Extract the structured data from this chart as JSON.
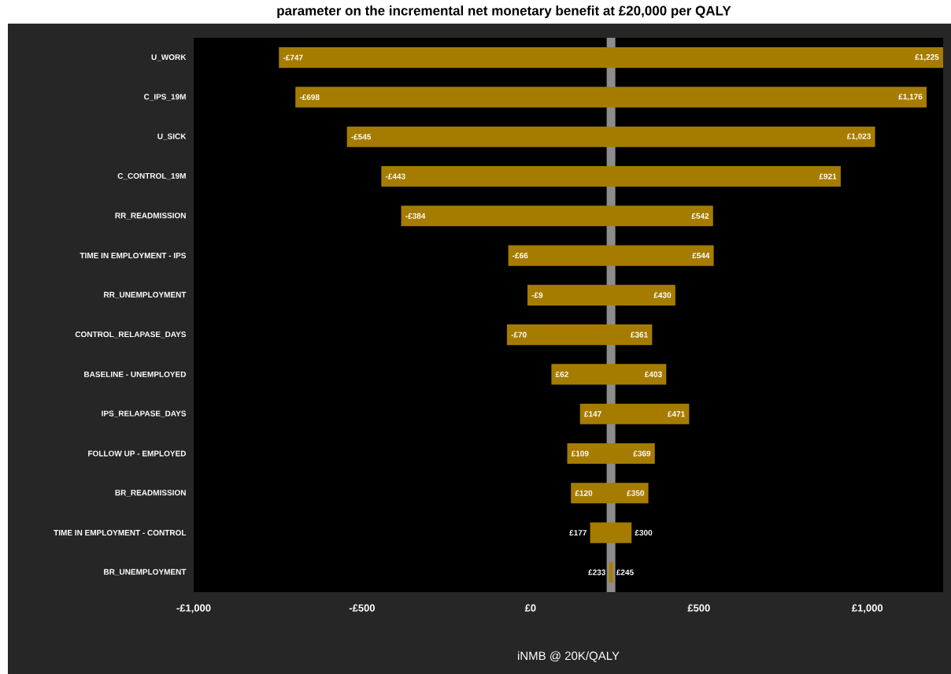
{
  "chart_data": {
    "type": "bar",
    "orientation": "horizontal",
    "title": "parameter on the incremental net monetary benefit at £20,000 per QALY",
    "xlabel": "iNMB @ 20K/QALY",
    "categories": [
      "U_WORK",
      "C_IPS_19M",
      "U_SICK",
      "C_CONTROL_19M",
      "RR_READMISSION",
      "TIME IN EMPLOYMENT - IPS",
      "RR_UNEMPLOYMENT",
      "CONTROL_RELAPASE_DAYS",
      "BASELINE - UNEMPLOYED",
      "IPS_RELAPASE_DAYS",
      "FOLLOW UP - EMPLOYED",
      "BR_READMISSION",
      "TIME IN EMPLOYMENT - CONTROL",
      "BR_UNEMPLOYMENT"
    ],
    "base": [
      -747,
      -698,
      -545,
      -443,
      -384,
      -66,
      -9,
      -70,
      62,
      147,
      109,
      120,
      177,
      233
    ],
    "values": [
      1972,
      1874,
      1568,
      1364,
      926,
      610,
      439,
      431,
      341,
      324,
      260,
      230,
      123,
      12
    ],
    "color": "#a67c00",
    "xlim": [
      -1000,
      1225
    ],
    "xticks": [
      {
        "value": -1000,
        "label": "-£1,000"
      },
      {
        "value": -500,
        "label": "-£500"
      },
      {
        "value": 0,
        "label": "£0"
      },
      {
        "value": 500,
        "label": "£500"
      },
      {
        "value": 1000,
        "label": "£1,000"
      }
    ],
    "ref_lines": [
      {
        "axis": "x",
        "value": 239,
        "color": "#8c8c8c"
      }
    ],
    "annotations": [
      {
        "text": "-£747",
        "x": -747,
        "y": "U_WORK"
      },
      {
        "text": "£1,225",
        "x": 1225,
        "y": "U_WORK"
      },
      {
        "text": "-£698",
        "x": -698,
        "y": "C_IPS_19M"
      },
      {
        "text": "£1,176",
        "x": 1176,
        "y": "C_IPS_19M"
      },
      {
        "text": "-£545",
        "x": -545,
        "y": "U_SICK"
      },
      {
        "text": "£1,023",
        "x": 1023,
        "y": "U_SICK"
      },
      {
        "text": "-£443",
        "x": -443,
        "y": "C_CONTROL_19M"
      },
      {
        "text": "£921",
        "x": 921,
        "y": "C_CONTROL_19M"
      },
      {
        "text": "-£384",
        "x": -384,
        "y": "RR_READMISSION"
      },
      {
        "text": "£542",
        "x": 542,
        "y": "RR_READMISSION"
      },
      {
        "text": "-£66",
        "x": -66,
        "y": "TIME IN EMPLOYMENT - IPS"
      },
      {
        "text": "£544",
        "x": 544,
        "y": "TIME IN EMPLOYMENT - IPS"
      },
      {
        "text": "-£9",
        "x": -9,
        "y": "RR_UNEMPLOYMENT"
      },
      {
        "text": "£430",
        "x": 430,
        "y": "RR_UNEMPLOYMENT"
      },
      {
        "text": "-£70",
        "x": -70,
        "y": "CONTROL_RELAPASE_DAYS"
      },
      {
        "text": "£361",
        "x": 361,
        "y": "CONTROL_RELAPASE_DAYS"
      },
      {
        "text": "£62",
        "x": 62,
        "y": "BASELINE - UNEMPLOYED"
      },
      {
        "text": "£403",
        "x": 403,
        "y": "BASELINE - UNEMPLOYED"
      },
      {
        "text": "£147",
        "x": 147,
        "y": "IPS_RELAPASE_DAYS"
      },
      {
        "text": "£471",
        "x": 471,
        "y": "IPS_RELAPASE_DAYS"
      },
      {
        "text": "£109",
        "x": 109,
        "y": "FOLLOW UP - EMPLOYED"
      },
      {
        "text": "£369",
        "x": 369,
        "y": "FOLLOW UP - EMPLOYED"
      },
      {
        "text": "£120",
        "x": 120,
        "y": "BR_READMISSION"
      },
      {
        "text": "£350",
        "x": 350,
        "y": "BR_READMISSION"
      },
      {
        "text": "£177",
        "x": 177,
        "y": "TIME IN EMPLOYMENT - CONTROL"
      },
      {
        "text": "£300",
        "x": 300,
        "y": "TIME IN EMPLOYMENT - CONTROL"
      },
      {
        "text": "£233",
        "x": 233,
        "y": "BR_UNEMPLOYMENT"
      },
      {
        "text": "£245",
        "x": 245,
        "y": "BR_UNEMPLOYMENT"
      }
    ]
  }
}
